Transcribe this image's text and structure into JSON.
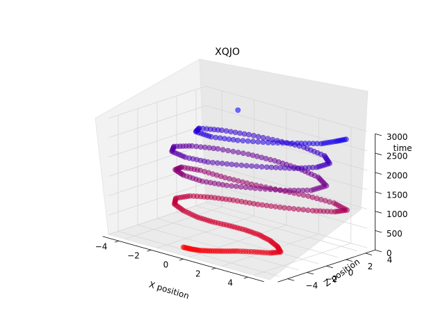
{
  "chart_data": {
    "type": "scatter",
    "projection": "3d",
    "title": "XQJO",
    "xlabel": "X position",
    "ylabel": "Z position",
    "zlabel": "time",
    "xlim": [
      -5,
      5
    ],
    "ylim": [
      -5,
      5
    ],
    "zlim": [
      0,
      3000
    ],
    "x_ticks": [
      -4,
      -2,
      0,
      2,
      4
    ],
    "y_ticks": [
      -4,
      -2,
      0,
      2,
      4
    ],
    "z_ticks": [
      0,
      500,
      1000,
      1500,
      2000,
      2500,
      3000
    ],
    "grid": true,
    "color_map": {
      "start": "#ff0000",
      "end": "#0000ff",
      "by": "time"
    },
    "series": [
      {
        "points": [
          [
            -1.2,
            -3.6,
            0
          ],
          [
            -0.6,
            -3.8,
            40
          ],
          [
            0.0,
            -3.9,
            80
          ],
          [
            0.6,
            -3.7,
            120
          ],
          [
            1.2,
            -3.4,
            160
          ],
          [
            1.8,
            -3.0,
            200
          ],
          [
            2.6,
            -2.6,
            240
          ],
          [
            3.4,
            -2.3,
            280
          ],
          [
            3.8,
            -1.9,
            320
          ],
          [
            3.3,
            -1.4,
            360
          ],
          [
            2.6,
            -1.0,
            400
          ],
          [
            1.8,
            -0.8,
            440
          ],
          [
            1.0,
            -0.9,
            480
          ],
          [
            0.2,
            -1.2,
            520
          ],
          [
            -0.6,
            -1.6,
            560
          ],
          [
            -1.4,
            -1.8,
            600
          ],
          [
            -2.4,
            -1.6,
            640
          ],
          [
            -3.2,
            -1.2,
            680
          ],
          [
            -3.6,
            -0.4,
            720
          ],
          [
            -3.2,
            0.4,
            760
          ],
          [
            -2.2,
            0.9,
            800
          ],
          [
            -1.0,
            1.2,
            840
          ],
          [
            0.4,
            1.4,
            880
          ],
          [
            1.8,
            1.8,
            920
          ],
          [
            3.2,
            2.4,
            960
          ],
          [
            4.2,
            3.0,
            1000
          ],
          [
            4.6,
            3.6,
            1040
          ],
          [
            3.6,
            3.9,
            1080
          ],
          [
            2.2,
            3.6,
            1120
          ],
          [
            0.8,
            3.0,
            1160
          ],
          [
            -0.6,
            2.4,
            1200
          ],
          [
            -2.0,
            2.0,
            1240
          ],
          [
            -3.4,
            1.8,
            1280
          ],
          [
            -4.2,
            1.2,
            1320
          ],
          [
            -4.0,
            0.2,
            1360
          ],
          [
            -3.0,
            -0.6,
            1400
          ],
          [
            -1.6,
            -1.0,
            1440
          ],
          [
            -0.2,
            -0.8,
            1480
          ],
          [
            1.2,
            -0.2,
            1520
          ],
          [
            2.6,
            0.6,
            1560
          ],
          [
            3.6,
            1.6,
            1600
          ],
          [
            3.8,
            2.8,
            1640
          ],
          [
            2.8,
            3.6,
            1680
          ],
          [
            1.4,
            3.9,
            1720
          ],
          [
            0.0,
            3.8,
            1760
          ],
          [
            -1.4,
            3.4,
            1800
          ],
          [
            -2.8,
            2.6,
            1840
          ],
          [
            -3.8,
            1.6,
            1880
          ],
          [
            -4.2,
            0.4,
            1920
          ],
          [
            -3.6,
            -0.8,
            1960
          ],
          [
            -2.4,
            -1.4,
            2000
          ],
          [
            -1.0,
            -1.4,
            2040
          ],
          [
            0.4,
            -0.8,
            2080
          ],
          [
            1.8,
            0.0,
            2120
          ],
          [
            3.0,
            0.8,
            2160
          ],
          [
            3.8,
            1.8,
            2200
          ],
          [
            4.0,
            2.8,
            2240
          ],
          [
            3.2,
            3.6,
            2280
          ],
          [
            1.8,
            3.8,
            2320
          ],
          [
            0.4,
            3.4,
            2360
          ],
          [
            -1.0,
            2.8,
            2400
          ],
          [
            -2.2,
            2.0,
            2440
          ],
          [
            -3.0,
            1.0,
            2480
          ],
          [
            -2.6,
            0.0,
            2520
          ],
          [
            -1.4,
            -0.4,
            2560
          ],
          [
            0.0,
            0.0,
            2600
          ],
          [
            1.4,
            0.8,
            2640
          ],
          [
            2.6,
            1.8,
            2680
          ],
          [
            3.6,
            2.6,
            2720
          ],
          [
            4.0,
            3.4,
            2760
          ],
          [
            4.3,
            4.0,
            2800
          ],
          [
            -1.5,
            2.5,
            3000
          ]
        ]
      }
    ]
  }
}
